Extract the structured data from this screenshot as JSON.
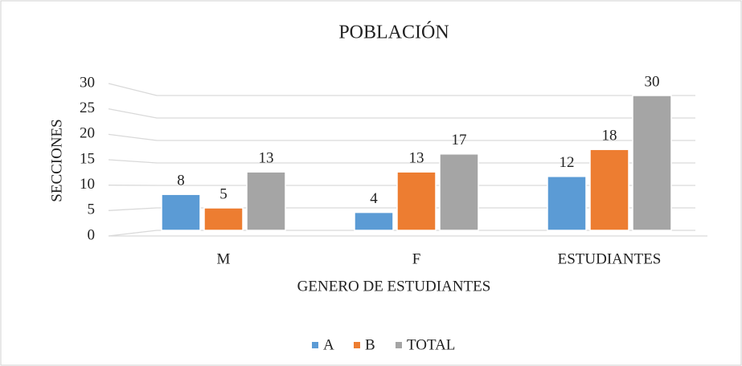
{
  "chart_data": {
    "type": "bar",
    "title": "POBLACIÓN",
    "x_label": "GENERO DE ESTUDIANTES",
    "y_label": "SECCIONES",
    "categories": [
      "M",
      "F",
      "ESTUDIANTES"
    ],
    "series": [
      {
        "name": "A",
        "color": "#5b9bd5",
        "values": [
          8,
          4,
          12
        ]
      },
      {
        "name": "B",
        "color": "#ed7d31",
        "values": [
          5,
          13,
          18
        ]
      },
      {
        "name": "TOTAL",
        "color": "#a5a5a5",
        "values": [
          13,
          17,
          30
        ]
      }
    ],
    "ylim": [
      0,
      30
    ],
    "yticks": [
      0,
      5,
      10,
      15,
      20,
      25,
      30
    ],
    "grid": true,
    "legend": "bottom"
  }
}
